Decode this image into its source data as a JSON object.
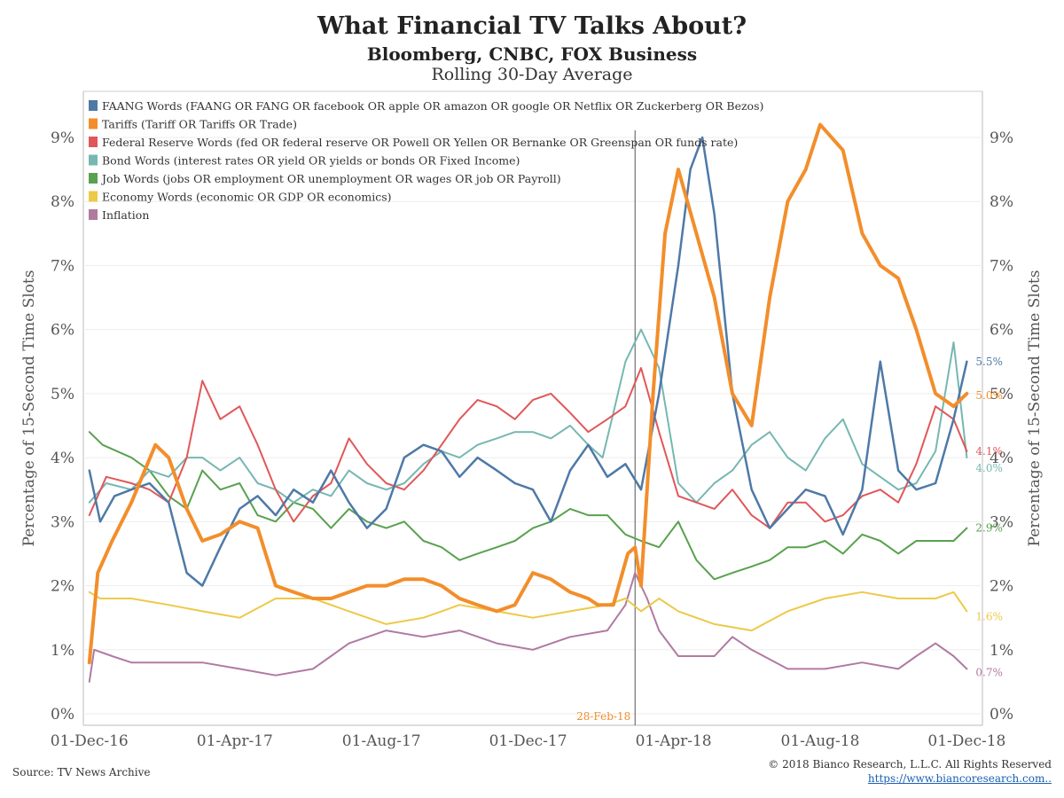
{
  "titles": {
    "title": "What Financial TV Talks About?",
    "subtitle": "Bloomberg, CNBC, FOX Business",
    "subtitle2": "Rolling 30-Day Average"
  },
  "footer": {
    "source": "Source: TV News Archive",
    "copyright": "© 2018 Bianco Research, L.L.C. All Rights Reserved",
    "url": "https://www.biancoresearch.com.."
  },
  "chart_data": {
    "type": "line",
    "xlabel": "",
    "ylabel_left": "Percentage of 15-Second Time Slots",
    "ylabel_right": "Percentage of 15-Second Time Slots",
    "ylim": [
      0,
      9.6
    ],
    "xlim": [
      "2016-11-26",
      "2018-12-14"
    ],
    "grid": true,
    "legend_position": "top-left",
    "y_ticks": [
      "0%",
      "1%",
      "2%",
      "3%",
      "4%",
      "5%",
      "6%",
      "7%",
      "8%",
      "9%"
    ],
    "y_tick_values": [
      0,
      1,
      2,
      3,
      4,
      5,
      6,
      7,
      8,
      9
    ],
    "x_ticks": [
      "01-Dec-16",
      "01-Apr-17",
      "01-Aug-17",
      "01-Dec-17",
      "01-Apr-18",
      "01-Aug-18",
      "01-Dec-18"
    ],
    "x_tick_dates": [
      "2016-12-01",
      "2017-04-01",
      "2017-08-01",
      "2017-12-01",
      "2018-04-01",
      "2018-08-01",
      "2018-12-01"
    ],
    "annotation": {
      "date": "2018-02-28",
      "label": "28-Feb-18"
    },
    "series": [
      {
        "name": "FAANG Words (FAANG OR FANG OR facebook OR apple OR amazon OR google OR Netflix OR Zuckerberg OR Bezos)",
        "color": "#4e79a7",
        "end_label": "5.5%",
        "width": 2.5,
        "x": [
          "2016-12-01",
          "2016-12-10",
          "2016-12-22",
          "2017-01-05",
          "2017-01-20",
          "2017-02-05",
          "2017-02-20",
          "2017-03-05",
          "2017-03-20",
          "2017-04-05",
          "2017-04-20",
          "2017-05-05",
          "2017-05-20",
          "2017-06-05",
          "2017-06-20",
          "2017-07-05",
          "2017-07-20",
          "2017-08-05",
          "2017-08-20",
          "2017-09-05",
          "2017-09-20",
          "2017-10-05",
          "2017-10-20",
          "2017-11-05",
          "2017-11-20",
          "2017-12-05",
          "2017-12-20",
          "2018-01-05",
          "2018-01-20",
          "2018-02-05",
          "2018-02-20",
          "2018-03-05",
          "2018-03-20",
          "2018-04-05",
          "2018-04-15",
          "2018-04-25",
          "2018-05-05",
          "2018-05-20",
          "2018-06-05",
          "2018-06-20",
          "2018-07-05",
          "2018-07-20",
          "2018-08-05",
          "2018-08-20",
          "2018-09-05",
          "2018-09-20",
          "2018-10-05",
          "2018-10-20",
          "2018-11-05",
          "2018-11-20",
          "2018-12-01"
        ],
        "values": [
          3.8,
          3.0,
          3.4,
          3.5,
          3.6,
          3.3,
          2.2,
          2.0,
          2.6,
          3.2,
          3.4,
          3.1,
          3.5,
          3.3,
          3.8,
          3.3,
          2.9,
          3.2,
          4.0,
          4.2,
          4.1,
          3.7,
          4.0,
          3.8,
          3.6,
          3.5,
          3.0,
          3.8,
          4.2,
          3.7,
          3.9,
          3.5,
          5.0,
          7.0,
          8.5,
          9.0,
          7.8,
          5.0,
          3.5,
          2.9,
          3.2,
          3.5,
          3.4,
          2.8,
          3.5,
          5.5,
          3.8,
          3.5,
          3.6,
          4.6,
          5.5
        ]
      },
      {
        "name": "Tariffs (Tariff OR Tariffs OR Trade)",
        "color": "#f28e2b",
        "end_label": "5.0%",
        "width": 4,
        "x": [
          "2016-12-01",
          "2016-12-08",
          "2016-12-20",
          "2017-01-05",
          "2017-01-25",
          "2017-02-05",
          "2017-02-20",
          "2017-03-05",
          "2017-03-20",
          "2017-04-05",
          "2017-04-20",
          "2017-05-05",
          "2017-05-20",
          "2017-06-05",
          "2017-06-20",
          "2017-07-05",
          "2017-07-20",
          "2017-08-05",
          "2017-08-20",
          "2017-09-05",
          "2017-09-20",
          "2017-10-05",
          "2017-10-20",
          "2017-11-05",
          "2017-11-20",
          "2017-12-05",
          "2017-12-20",
          "2018-01-05",
          "2018-01-20",
          "2018-01-28",
          "2018-02-10",
          "2018-02-22",
          "2018-02-28",
          "2018-03-05",
          "2018-03-15",
          "2018-03-25",
          "2018-04-05",
          "2018-04-20",
          "2018-05-05",
          "2018-05-20",
          "2018-06-05",
          "2018-06-20",
          "2018-07-05",
          "2018-07-20",
          "2018-08-01",
          "2018-08-20",
          "2018-09-05",
          "2018-09-20",
          "2018-10-05",
          "2018-10-20",
          "2018-11-05",
          "2018-11-20",
          "2018-12-01"
        ],
        "values": [
          0.8,
          2.2,
          2.7,
          3.3,
          4.2,
          4.0,
          3.2,
          2.7,
          2.8,
          3.0,
          2.9,
          2.0,
          1.9,
          1.8,
          1.8,
          1.9,
          2.0,
          2.0,
          2.1,
          2.1,
          2.0,
          1.8,
          1.7,
          1.6,
          1.7,
          2.2,
          2.1,
          1.9,
          1.8,
          1.7,
          1.7,
          2.5,
          2.6,
          2.0,
          5.0,
          7.5,
          8.5,
          7.5,
          6.5,
          5.0,
          4.5,
          6.5,
          8.0,
          8.5,
          9.2,
          8.8,
          7.5,
          7.0,
          6.8,
          6.0,
          5.0,
          4.8,
          5.0
        ]
      },
      {
        "name": "Federal Reserve Words (fed OR federal reserve OR Powell OR Yellen OR Bernanke OR Greenspan OR funds rate)",
        "color": "#e15759",
        "end_label": "4.1%",
        "width": 2,
        "x": [
          "2016-12-01",
          "2016-12-15",
          "2017-01-05",
          "2017-01-20",
          "2017-02-05",
          "2017-02-20",
          "2017-03-05",
          "2017-03-20",
          "2017-04-05",
          "2017-04-20",
          "2017-05-05",
          "2017-05-20",
          "2017-06-05",
          "2017-06-20",
          "2017-07-05",
          "2017-07-20",
          "2017-08-05",
          "2017-08-20",
          "2017-09-05",
          "2017-09-20",
          "2017-10-05",
          "2017-10-20",
          "2017-11-05",
          "2017-11-20",
          "2017-12-05",
          "2017-12-20",
          "2018-01-05",
          "2018-01-20",
          "2018-02-05",
          "2018-02-20",
          "2018-03-05",
          "2018-03-20",
          "2018-04-05",
          "2018-04-20",
          "2018-05-05",
          "2018-05-20",
          "2018-06-05",
          "2018-06-20",
          "2018-07-05",
          "2018-07-20",
          "2018-08-05",
          "2018-08-20",
          "2018-09-05",
          "2018-09-20",
          "2018-10-05",
          "2018-10-20",
          "2018-11-05",
          "2018-11-20",
          "2018-12-01"
        ],
        "values": [
          3.1,
          3.7,
          3.6,
          3.5,
          3.3,
          4.0,
          5.2,
          4.6,
          4.8,
          4.2,
          3.5,
          3.0,
          3.4,
          3.6,
          4.3,
          3.9,
          3.6,
          3.5,
          3.8,
          4.2,
          4.6,
          4.9,
          4.8,
          4.6,
          4.9,
          5.0,
          4.7,
          4.4,
          4.6,
          4.8,
          5.4,
          4.4,
          3.4,
          3.3,
          3.2,
          3.5,
          3.1,
          2.9,
          3.3,
          3.3,
          3.0,
          3.1,
          3.4,
          3.5,
          3.3,
          3.9,
          4.8,
          4.6,
          4.1
        ]
      },
      {
        "name": "Bond Words (interest rates OR yield OR yields or bonds OR Fixed Income)",
        "color": "#76b7b2",
        "end_label": "4.0%",
        "width": 2,
        "x": [
          "2016-12-01",
          "2016-12-15",
          "2017-01-05",
          "2017-01-20",
          "2017-02-05",
          "2017-02-20",
          "2017-03-05",
          "2017-03-20",
          "2017-04-05",
          "2017-04-20",
          "2017-05-05",
          "2017-05-20",
          "2017-06-05",
          "2017-06-20",
          "2017-07-05",
          "2017-07-20",
          "2017-08-05",
          "2017-08-20",
          "2017-09-05",
          "2017-09-20",
          "2017-10-05",
          "2017-10-20",
          "2017-11-05",
          "2017-11-20",
          "2017-12-05",
          "2017-12-20",
          "2018-01-05",
          "2018-01-20",
          "2018-02-01",
          "2018-02-10",
          "2018-02-20",
          "2018-03-05",
          "2018-03-20",
          "2018-04-05",
          "2018-04-20",
          "2018-05-05",
          "2018-05-20",
          "2018-06-05",
          "2018-06-20",
          "2018-07-05",
          "2018-07-20",
          "2018-08-05",
          "2018-08-20",
          "2018-09-05",
          "2018-09-20",
          "2018-10-05",
          "2018-10-20",
          "2018-11-05",
          "2018-11-20",
          "2018-12-01"
        ],
        "values": [
          3.3,
          3.6,
          3.5,
          3.8,
          3.7,
          4.0,
          4.0,
          3.8,
          4.0,
          3.6,
          3.5,
          3.3,
          3.5,
          3.4,
          3.8,
          3.6,
          3.5,
          3.6,
          3.9,
          4.1,
          4.0,
          4.2,
          4.3,
          4.4,
          4.4,
          4.3,
          4.5,
          4.2,
          4.0,
          4.7,
          5.5,
          6.0,
          5.4,
          3.6,
          3.3,
          3.6,
          3.8,
          4.2,
          4.4,
          4.0,
          3.8,
          4.3,
          4.6,
          3.9,
          3.7,
          3.5,
          3.6,
          4.1,
          5.8,
          4.0
        ]
      },
      {
        "name": "Job Words (jobs OR employment OR unemployment OR wages OR job OR Payroll)",
        "color": "#59a14f",
        "end_label": "2.9%",
        "width": 2,
        "x": [
          "2016-12-01",
          "2016-12-12",
          "2017-01-05",
          "2017-01-20",
          "2017-02-05",
          "2017-02-20",
          "2017-03-05",
          "2017-03-20",
          "2017-04-05",
          "2017-04-20",
          "2017-05-05",
          "2017-05-20",
          "2017-06-05",
          "2017-06-20",
          "2017-07-05",
          "2017-07-20",
          "2017-08-05",
          "2017-08-20",
          "2017-09-05",
          "2017-09-20",
          "2017-10-05",
          "2017-10-20",
          "2017-11-05",
          "2017-11-20",
          "2017-12-05",
          "2017-12-20",
          "2018-01-05",
          "2018-01-20",
          "2018-02-05",
          "2018-02-20",
          "2018-03-05",
          "2018-03-20",
          "2018-04-05",
          "2018-04-20",
          "2018-05-05",
          "2018-05-20",
          "2018-06-05",
          "2018-06-20",
          "2018-07-05",
          "2018-07-20",
          "2018-08-05",
          "2018-08-20",
          "2018-09-05",
          "2018-09-20",
          "2018-10-05",
          "2018-10-20",
          "2018-11-05",
          "2018-11-20",
          "2018-12-01"
        ],
        "values": [
          4.4,
          4.2,
          4.0,
          3.8,
          3.4,
          3.2,
          3.8,
          3.5,
          3.6,
          3.1,
          3.0,
          3.3,
          3.2,
          2.9,
          3.2,
          3.0,
          2.9,
          3.0,
          2.7,
          2.6,
          2.4,
          2.5,
          2.6,
          2.7,
          2.9,
          3.0,
          3.2,
          3.1,
          3.1,
          2.8,
          2.7,
          2.6,
          3.0,
          2.4,
          2.1,
          2.2,
          2.3,
          2.4,
          2.6,
          2.6,
          2.7,
          2.5,
          2.8,
          2.7,
          2.5,
          2.7,
          2.7,
          2.7,
          2.9
        ]
      },
      {
        "name": "Economy Words (economic OR GDP OR economics)",
        "color": "#edc948",
        "end_label": "1.6%",
        "width": 2,
        "x": [
          "2016-12-01",
          "2016-12-10",
          "2017-01-05",
          "2017-02-05",
          "2017-03-05",
          "2017-04-05",
          "2017-05-05",
          "2017-06-05",
          "2017-07-05",
          "2017-08-05",
          "2017-09-05",
          "2017-10-05",
          "2017-11-05",
          "2017-12-05",
          "2018-01-05",
          "2018-02-05",
          "2018-02-20",
          "2018-03-05",
          "2018-03-20",
          "2018-04-05",
          "2018-05-05",
          "2018-06-05",
          "2018-07-05",
          "2018-08-05",
          "2018-09-05",
          "2018-10-05",
          "2018-11-05",
          "2018-11-20",
          "2018-12-01"
        ],
        "values": [
          1.9,
          1.8,
          1.8,
          1.7,
          1.6,
          1.5,
          1.8,
          1.8,
          1.6,
          1.4,
          1.5,
          1.7,
          1.6,
          1.5,
          1.6,
          1.7,
          1.8,
          1.6,
          1.8,
          1.6,
          1.4,
          1.3,
          1.6,
          1.8,
          1.9,
          1.8,
          1.8,
          1.9,
          1.6
        ]
      },
      {
        "name": "Inflation",
        "color": "#b07aa1",
        "end_label": "0.7%",
        "width": 2,
        "x": [
          "2016-12-01",
          "2016-12-05",
          "2016-12-20",
          "2017-01-05",
          "2017-02-05",
          "2017-03-05",
          "2017-04-05",
          "2017-05-05",
          "2017-06-05",
          "2017-06-20",
          "2017-07-05",
          "2017-08-05",
          "2017-09-05",
          "2017-10-05",
          "2017-11-05",
          "2017-12-05",
          "2018-01-05",
          "2018-02-05",
          "2018-02-20",
          "2018-02-28",
          "2018-03-10",
          "2018-03-20",
          "2018-04-05",
          "2018-05-05",
          "2018-05-20",
          "2018-06-05",
          "2018-07-05",
          "2018-08-05",
          "2018-09-05",
          "2018-10-05",
          "2018-10-20",
          "2018-11-05",
          "2018-11-20",
          "2018-12-01"
        ],
        "values": [
          0.5,
          1.0,
          0.9,
          0.8,
          0.8,
          0.8,
          0.7,
          0.6,
          0.7,
          0.9,
          1.1,
          1.3,
          1.2,
          1.3,
          1.1,
          1.0,
          1.2,
          1.3,
          1.7,
          2.2,
          1.8,
          1.3,
          0.9,
          0.9,
          1.2,
          1.0,
          0.7,
          0.7,
          0.8,
          0.7,
          0.9,
          1.1,
          0.9,
          0.7
        ]
      }
    ]
  }
}
